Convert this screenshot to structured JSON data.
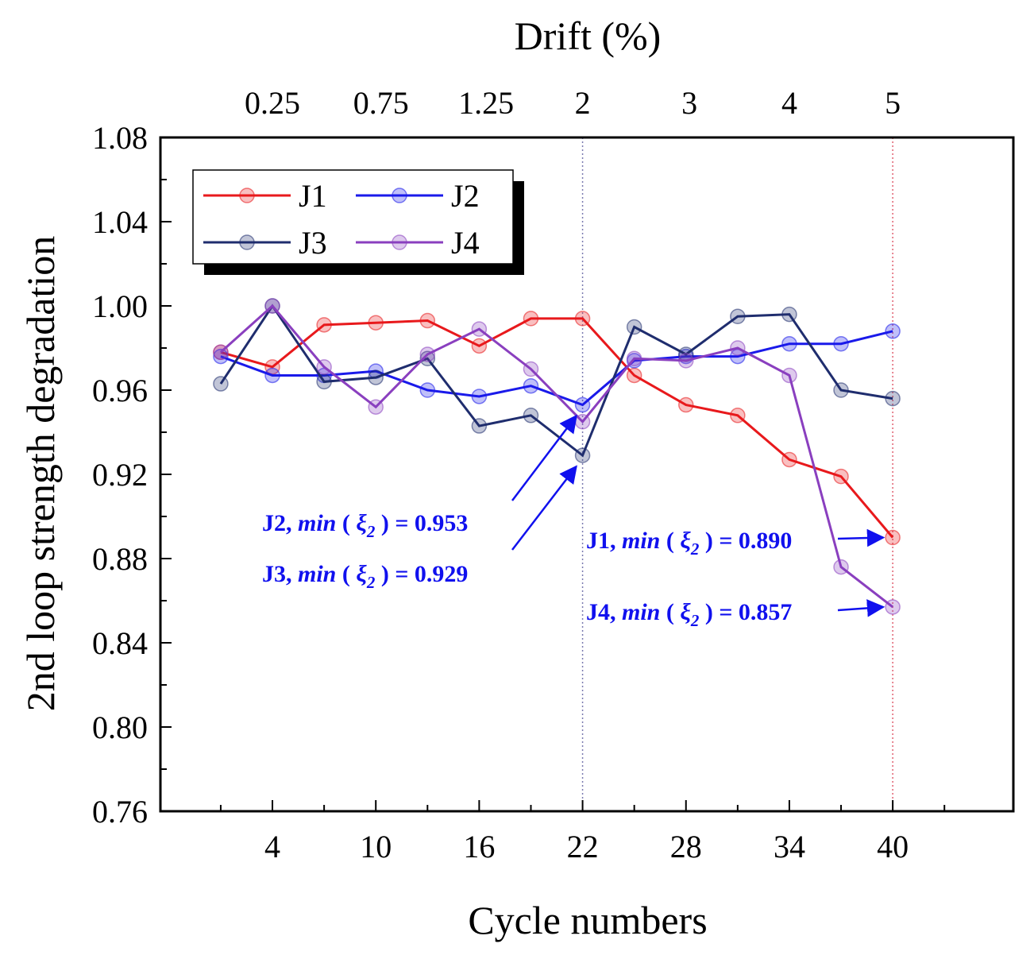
{
  "chart_data": {
    "type": "line",
    "xlabel": "Cycle numbers",
    "ylabel": "2nd loop strength degradation",
    "top_xlabel": "Drift (%)",
    "xlim": [
      -2.5,
      47
    ],
    "ylim": [
      0.76,
      1.08
    ],
    "x_ticks": [
      4,
      10,
      16,
      22,
      28,
      34,
      40
    ],
    "x_tick_labels": [
      "4",
      "10",
      "16",
      "22",
      "28",
      "34",
      "40"
    ],
    "y_ticks": [
      0.76,
      0.8,
      0.84,
      0.88,
      0.92,
      0.96,
      1.0,
      1.04,
      1.08
    ],
    "y_tick_labels": [
      "0.76",
      "0.80",
      "0.84",
      "0.88",
      "0.92",
      "0.96",
      "1.00",
      "1.04",
      "1.08"
    ],
    "top_ticks": [
      {
        "x": 4,
        "label": "0.25"
      },
      {
        "x": 10.3,
        "label": "0.75"
      },
      {
        "x": 16.4,
        "label": "1.25"
      },
      {
        "x": 22,
        "label": "2"
      },
      {
        "x": 28.2,
        "label": "3"
      },
      {
        "x": 34,
        "label": "4"
      },
      {
        "x": 40,
        "label": "5"
      }
    ],
    "reference_lines": [
      {
        "x": 22,
        "color": "#7a7ab0"
      },
      {
        "x": 40,
        "color": "#e06070"
      }
    ],
    "x": [
      1,
      4,
      7,
      10,
      13,
      16,
      19,
      22,
      25,
      28,
      31,
      34,
      37,
      40
    ],
    "series": [
      {
        "name": "J1",
        "color": "#e8191c",
        "values": [
          0.978,
          0.971,
          0.991,
          0.992,
          0.993,
          0.981,
          0.994,
          0.994,
          0.967,
          0.953,
          0.948,
          0.927,
          0.919,
          0.89
        ]
      },
      {
        "name": "J2",
        "color": "#1a1aea",
        "values": [
          0.976,
          0.967,
          0.967,
          0.969,
          0.96,
          0.957,
          0.962,
          0.953,
          0.974,
          0.976,
          0.976,
          0.982,
          0.982,
          0.988
        ]
      },
      {
        "name": "J3",
        "color": "#1f2d6e",
        "values": [
          0.963,
          1.0,
          0.964,
          0.966,
          0.975,
          0.943,
          0.948,
          0.929,
          0.99,
          0.977,
          0.995,
          0.996,
          0.96,
          0.956
        ]
      },
      {
        "name": "J4",
        "color": "#8a3fbf",
        "values": [
          0.978,
          1.0,
          0.971,
          0.952,
          0.977,
          0.989,
          0.97,
          0.945,
          0.975,
          0.974,
          0.98,
          0.967,
          0.876,
          0.857
        ]
      }
    ],
    "legend": {
      "position": "top-left",
      "entries": [
        "J1",
        "J2",
        "J3",
        "J4"
      ]
    },
    "annotations": [
      {
        "series": "J2",
        "text_prefix": "J2, ",
        "text_min": "min",
        "text_open": " ( ",
        "text_xi": "ξ",
        "text_sub": "2",
        "text_close": " ) = 0.953",
        "target_x": 22,
        "target_y": 0.953
      },
      {
        "series": "J3",
        "text_prefix": "J3, ",
        "text_min": "min",
        "text_open": " ( ",
        "text_xi": "ξ",
        "text_sub": "2",
        "text_close": " ) = 0.929",
        "target_x": 22,
        "target_y": 0.929
      },
      {
        "series": "J1",
        "text_prefix": "J1, ",
        "text_min": "min",
        "text_open": " ( ",
        "text_xi": "ξ",
        "text_sub": "2",
        "text_close": " ) = 0.890",
        "target_x": 40,
        "target_y": 0.89
      },
      {
        "series": "J4",
        "text_prefix": "J4, ",
        "text_min": "min",
        "text_open": " ( ",
        "text_xi": "ξ",
        "text_sub": "2",
        "text_close": " ) = 0.857",
        "target_x": 40,
        "target_y": 0.857
      }
    ],
    "annotation_color": "#1010ee"
  }
}
